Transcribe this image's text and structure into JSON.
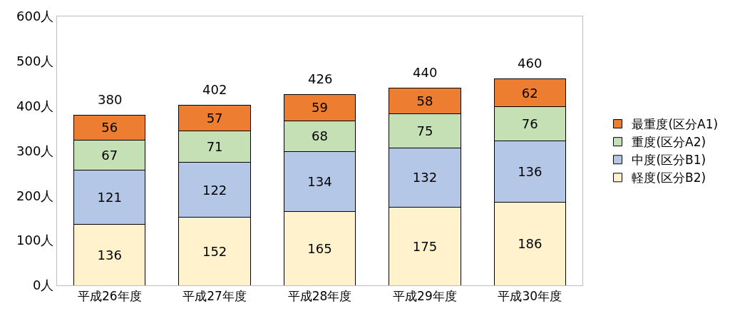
{
  "chart_data": {
    "type": "bar",
    "stacked": true,
    "categories": [
      "平成26年度",
      "平成27年度",
      "平成28年度",
      "平成29年度",
      "平成30年度"
    ],
    "series": [
      {
        "name": "軽度(区分B2)",
        "color": "#fff2cc",
        "values": [
          136,
          152,
          165,
          175,
          186
        ]
      },
      {
        "name": "中度(区分B1)",
        "color": "#b4c7e7",
        "values": [
          121,
          122,
          134,
          132,
          136
        ]
      },
      {
        "name": "重度(区分A2)",
        "color": "#c5e0b4",
        "values": [
          67,
          71,
          68,
          75,
          76
        ]
      },
      {
        "name": "最重度(区分A1)",
        "color": "#ed7d31",
        "values": [
          56,
          57,
          59,
          58,
          62
        ]
      }
    ],
    "totals": [
      "380",
      "402",
      "426",
      "440",
      "460"
    ],
    "data_labels": true,
    "ylim": [
      0,
      600
    ],
    "yticks": [
      {
        "value": 0,
        "label": "0人"
      },
      {
        "value": 100,
        "label": "100人"
      },
      {
        "value": 200,
        "label": "200人"
      },
      {
        "value": 300,
        "label": "300人"
      },
      {
        "value": 400,
        "label": "400人"
      },
      {
        "value": 500,
        "label": "500人"
      },
      {
        "value": 600,
        "label": "600人"
      }
    ],
    "grid": false,
    "legend": "right"
  }
}
